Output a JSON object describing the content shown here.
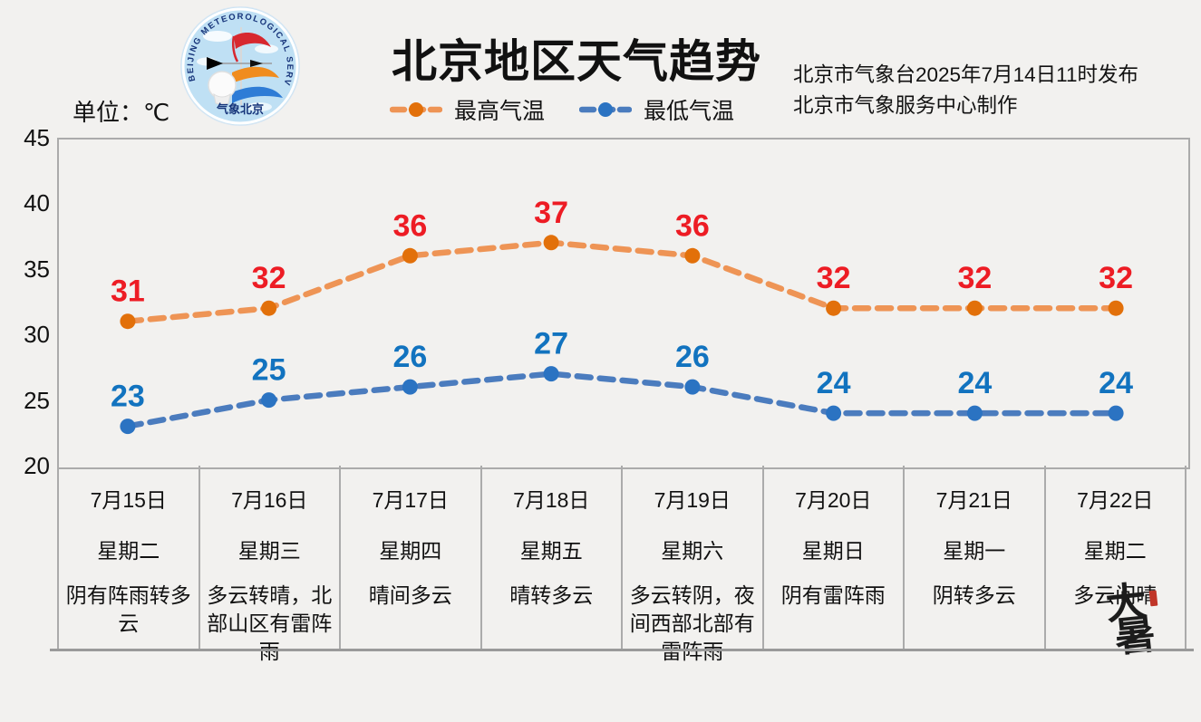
{
  "colors": {
    "background": "#F2F1EF",
    "border": "#ABABAB",
    "bottom_rule": "#9A9A9A",
    "high_line": "#EE9455",
    "high_marker": "#E2700A",
    "high_label": "#ED1C24",
    "low_line": "#4B7CBE",
    "low_marker": "#2B73C2",
    "low_label": "#1273BF",
    "seal_red": "#C03528"
  },
  "header": {
    "title": "北京地区天气趋势",
    "issued_line1": "北京市气象台2025年7月14日11时发布",
    "issued_line2": "北京市气象服务中心制作",
    "unit_label": "单位：℃"
  },
  "logo": {
    "arc_text": "BEIJING METEOROLOGICAL SERVICE",
    "bottom_text": "气象北京"
  },
  "legend": [
    {
      "label": "最高气温",
      "line": "#EE9455",
      "marker": "#E2700A",
      "key": "high-temp"
    },
    {
      "label": "最低气温",
      "line": "#4B7CBE",
      "marker": "#2B73C2",
      "key": "low-temp"
    }
  ],
  "chart_data": {
    "type": "line",
    "categories": [
      "7月15日",
      "7月16日",
      "7月17日",
      "7月18日",
      "7月19日",
      "7月20日",
      "7月21日",
      "7月22日"
    ],
    "series": [
      {
        "name": "最高气温",
        "key": "high-temp",
        "values": [
          31,
          32,
          36,
          37,
          36,
          32,
          32,
          32
        ]
      },
      {
        "name": "最低气温",
        "key": "low-temp",
        "values": [
          23,
          25,
          26,
          27,
          26,
          24,
          24,
          24
        ]
      }
    ],
    "ylim": [
      20,
      45
    ],
    "yticks": [
      45,
      40,
      35,
      30,
      25,
      20
    ],
    "grid": false,
    "line_style": "dashed-with-markers",
    "legend_position": "top-center",
    "title": "北京地区天气趋势",
    "ylabel": "℃"
  },
  "days": [
    {
      "date": "7月15日",
      "weekday": "星期二",
      "weather": "阴有阵雨转多云"
    },
    {
      "date": "7月16日",
      "weekday": "星期三",
      "weather": "多云转晴，北部山区有雷阵雨"
    },
    {
      "date": "7月17日",
      "weekday": "星期四",
      "weather": "晴间多云"
    },
    {
      "date": "7月18日",
      "weekday": "星期五",
      "weather": "晴转多云"
    },
    {
      "date": "7月19日",
      "weekday": "星期六",
      "weather": "多云转阴，夜间西部北部有雷阵雨"
    },
    {
      "date": "7月20日",
      "weekday": "星期日",
      "weather": "阴有雷阵雨"
    },
    {
      "date": "7月21日",
      "weekday": "星期一",
      "weather": "阴转多云"
    },
    {
      "date": "7月22日",
      "weekday": "星期二",
      "weather": "多云间晴"
    }
  ],
  "seal": {
    "text": "大暑"
  }
}
